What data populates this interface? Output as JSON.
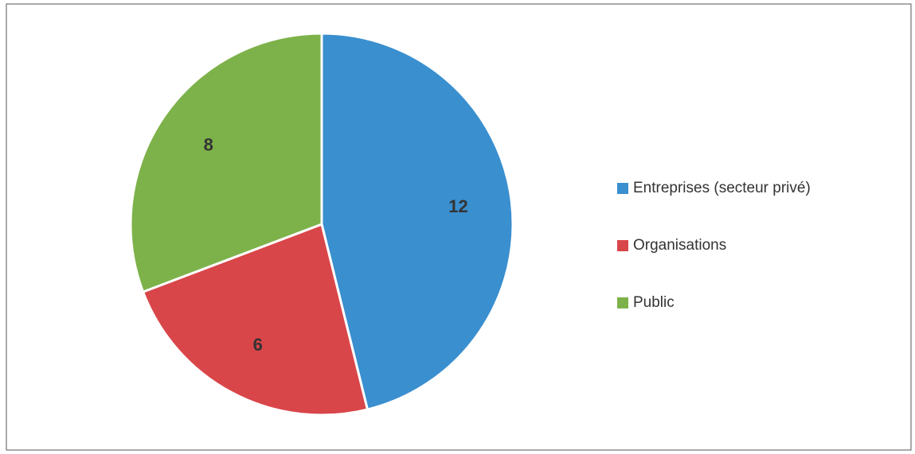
{
  "chart_data": {
    "type": "pie",
    "categories": [
      "Entreprises (secteur privé)",
      "Organisations",
      "Public"
    ],
    "values": [
      12,
      6,
      8
    ],
    "colors": [
      "#3a8fcf",
      "#d9464a",
      "#7db24a"
    ],
    "legend": "right"
  }
}
